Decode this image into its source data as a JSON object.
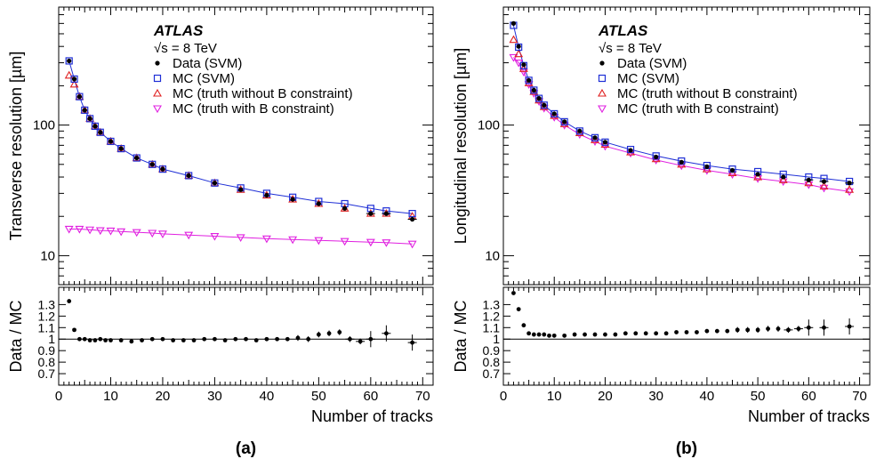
{
  "panels": [
    {
      "label": "(a)",
      "experiment": "ATLAS",
      "energy": "√s = 8 TeV",
      "ylabel": "Transverse resolution [µm]",
      "ratio_ylabel": "Data / MC",
      "xlabel": "Number of tracks",
      "legend": [
        "Data (SVM)",
        "MC (SVM)",
        "MC (truth without B constraint)",
        "MC (truth with B constraint)"
      ],
      "main_ytick_labels": [
        "10",
        "100"
      ],
      "ratio_ytick_labels": [
        "1.3",
        "1.2",
        "1.1",
        "1",
        "0.9",
        "0.8",
        "0.7"
      ],
      "xtick_labels": [
        "0",
        "10",
        "20",
        "30",
        "40",
        "50",
        "60",
        "70"
      ]
    },
    {
      "label": "(b)",
      "experiment": "ATLAS",
      "energy": "√s = 8 TeV",
      "ylabel": "Longitudinal resolution [µm]",
      "ratio_ylabel": "Data / MC",
      "xlabel": "Number of tracks",
      "legend": [
        "Data (SVM)",
        "MC (SVM)",
        "MC (truth without B constraint)",
        "MC (truth with B constraint)"
      ],
      "main_ytick_labels": [
        "10",
        "100"
      ],
      "ratio_ytick_labels": [
        "1.3",
        "1.2",
        "1.1",
        "1",
        "0.9",
        "0.8",
        "0.7"
      ],
      "xtick_labels": [
        "0",
        "10",
        "20",
        "30",
        "40",
        "50",
        "60",
        "70"
      ]
    }
  ],
  "colors": {
    "data": "#000000",
    "mc_svm": "#1f2fd6",
    "mc_truth_no_b": "#e02020",
    "mc_truth_b": "#e020e0",
    "fit_line": "#1f2fd6"
  },
  "chart_data": [
    {
      "type": "scatter",
      "panel": "a",
      "xlabel": "Number of tracks",
      "ylabel": "Transverse resolution [µm]",
      "y_scale": "log",
      "xlim": [
        0,
        72
      ],
      "ylim": [
        6,
        800
      ],
      "series": [
        {
          "name": "Data (SVM)",
          "x": [
            2,
            3,
            4,
            5,
            6,
            7,
            8,
            10,
            12,
            15,
            18,
            20,
            25,
            30,
            35,
            40,
            45,
            50,
            55,
            60,
            63,
            68
          ],
          "y": [
            310,
            225,
            165,
            130,
            112,
            98,
            88,
            75,
            66,
            56,
            50,
            46,
            41,
            36,
            32,
            29,
            27,
            25,
            23,
            21,
            21,
            19
          ]
        },
        {
          "name": "MC (SVM)",
          "x": [
            2,
            3,
            4,
            5,
            6,
            7,
            8,
            10,
            12,
            15,
            18,
            20,
            25,
            30,
            35,
            40,
            45,
            50,
            55,
            60,
            63,
            68
          ],
          "y": [
            310,
            225,
            165,
            130,
            112,
            98,
            88,
            75,
            66,
            56,
            50,
            46,
            41,
            36,
            33,
            30,
            28,
            26,
            25,
            23,
            22,
            21
          ]
        },
        {
          "name": "MC (truth without B constraint)",
          "x": [
            2,
            3,
            4,
            5,
            6,
            7,
            8,
            10,
            12,
            15,
            18,
            20,
            25,
            30,
            35,
            40,
            45,
            50,
            55,
            60,
            63,
            68
          ],
          "y": [
            240,
            205,
            165,
            130,
            112,
            98,
            88,
            75,
            66,
            56,
            50,
            46,
            41,
            36,
            32,
            29,
            27,
            25,
            23,
            21,
            21,
            20
          ]
        },
        {
          "name": "MC (truth with B constraint)",
          "x": [
            2,
            4,
            6,
            8,
            10,
            12,
            15,
            18,
            20,
            25,
            30,
            35,
            40,
            45,
            50,
            55,
            60,
            63,
            68
          ],
          "y": [
            16,
            16,
            15.8,
            15.6,
            15.5,
            15.3,
            15.1,
            14.9,
            14.7,
            14.4,
            14.1,
            13.8,
            13.5,
            13.3,
            13.1,
            12.9,
            12.7,
            12.6,
            12.3
          ]
        }
      ],
      "ratio": {
        "name": "Data / MC",
        "ylim": [
          0.6,
          1.45
        ],
        "x": [
          2,
          3,
          4,
          5,
          6,
          7,
          8,
          9,
          10,
          12,
          14,
          16,
          18,
          20,
          22,
          24,
          26,
          28,
          30,
          32,
          34,
          36,
          38,
          40,
          42,
          44,
          46,
          48,
          50,
          52,
          54,
          56,
          58,
          60,
          63,
          68
        ],
        "y": [
          1.33,
          1.08,
          1.0,
          1.0,
          0.99,
          0.99,
          1.0,
          0.99,
          0.99,
          0.99,
          0.98,
          0.99,
          1.0,
          1.0,
          0.99,
          0.99,
          0.99,
          1.0,
          1.0,
          0.99,
          1.0,
          1.0,
          0.99,
          1.0,
          1.0,
          1.0,
          1.01,
          1.0,
          1.04,
          1.05,
          1.06,
          1.0,
          0.98,
          1.0,
          1.05,
          0.97
        ]
      }
    },
    {
      "type": "scatter",
      "panel": "b",
      "xlabel": "Number of tracks",
      "ylabel": "Longitudinal resolution [µm]",
      "y_scale": "log",
      "xlim": [
        0,
        72
      ],
      "ylim": [
        6,
        800
      ],
      "series": [
        {
          "name": "Data (SVM)",
          "x": [
            2,
            3,
            4,
            5,
            6,
            7,
            8,
            10,
            12,
            15,
            18,
            20,
            25,
            30,
            35,
            40,
            45,
            50,
            55,
            60,
            63,
            68
          ],
          "y": [
            600,
            400,
            290,
            220,
            185,
            160,
            142,
            122,
            106,
            90,
            80,
            74,
            64,
            57,
            52,
            48,
            45,
            42,
            40,
            38,
            37,
            36
          ]
        },
        {
          "name": "MC (SVM)",
          "x": [
            2,
            3,
            4,
            5,
            6,
            7,
            8,
            10,
            12,
            15,
            18,
            20,
            25,
            30,
            35,
            40,
            45,
            50,
            55,
            60,
            63,
            68
          ],
          "y": [
            580,
            395,
            285,
            220,
            185,
            160,
            142,
            122,
            106,
            90,
            80,
            74,
            65,
            58,
            53,
            49,
            46,
            44,
            42,
            40,
            39,
            37
          ]
        },
        {
          "name": "MC (truth without B constraint)",
          "x": [
            2,
            3,
            4,
            5,
            6,
            7,
            8,
            10,
            12,
            15,
            18,
            20,
            25,
            30,
            35,
            40,
            45,
            50,
            55,
            60,
            63,
            68
          ],
          "y": [
            450,
            350,
            270,
            210,
            180,
            155,
            138,
            118,
            102,
            87,
            77,
            71,
            62,
            55,
            50,
            46,
            43,
            40,
            38,
            36,
            34,
            32
          ]
        },
        {
          "name": "MC (truth with B constraint)",
          "x": [
            2,
            3,
            4,
            5,
            6,
            7,
            8,
            10,
            12,
            15,
            18,
            20,
            25,
            30,
            35,
            40,
            45,
            50,
            55,
            60,
            63,
            68
          ],
          "y": [
            330,
            300,
            255,
            205,
            175,
            152,
            135,
            115,
            100,
            85,
            75,
            69,
            61,
            54,
            49,
            45,
            42,
            39,
            37,
            35,
            33,
            31
          ]
        }
      ],
      "ratio": {
        "name": "Data / MC",
        "ylim": [
          0.6,
          1.45
        ],
        "x": [
          2,
          3,
          4,
          5,
          6,
          7,
          8,
          9,
          10,
          12,
          14,
          16,
          18,
          20,
          22,
          24,
          26,
          28,
          30,
          32,
          34,
          36,
          38,
          40,
          42,
          44,
          46,
          48,
          50,
          52,
          54,
          56,
          58,
          60,
          63,
          68
        ],
        "y": [
          1.4,
          1.26,
          1.12,
          1.05,
          1.04,
          1.04,
          1.04,
          1.03,
          1.03,
          1.03,
          1.04,
          1.04,
          1.04,
          1.04,
          1.04,
          1.05,
          1.05,
          1.05,
          1.05,
          1.05,
          1.06,
          1.06,
          1.06,
          1.07,
          1.07,
          1.07,
          1.08,
          1.08,
          1.08,
          1.09,
          1.09,
          1.08,
          1.09,
          1.1,
          1.1,
          1.11
        ]
      }
    }
  ]
}
